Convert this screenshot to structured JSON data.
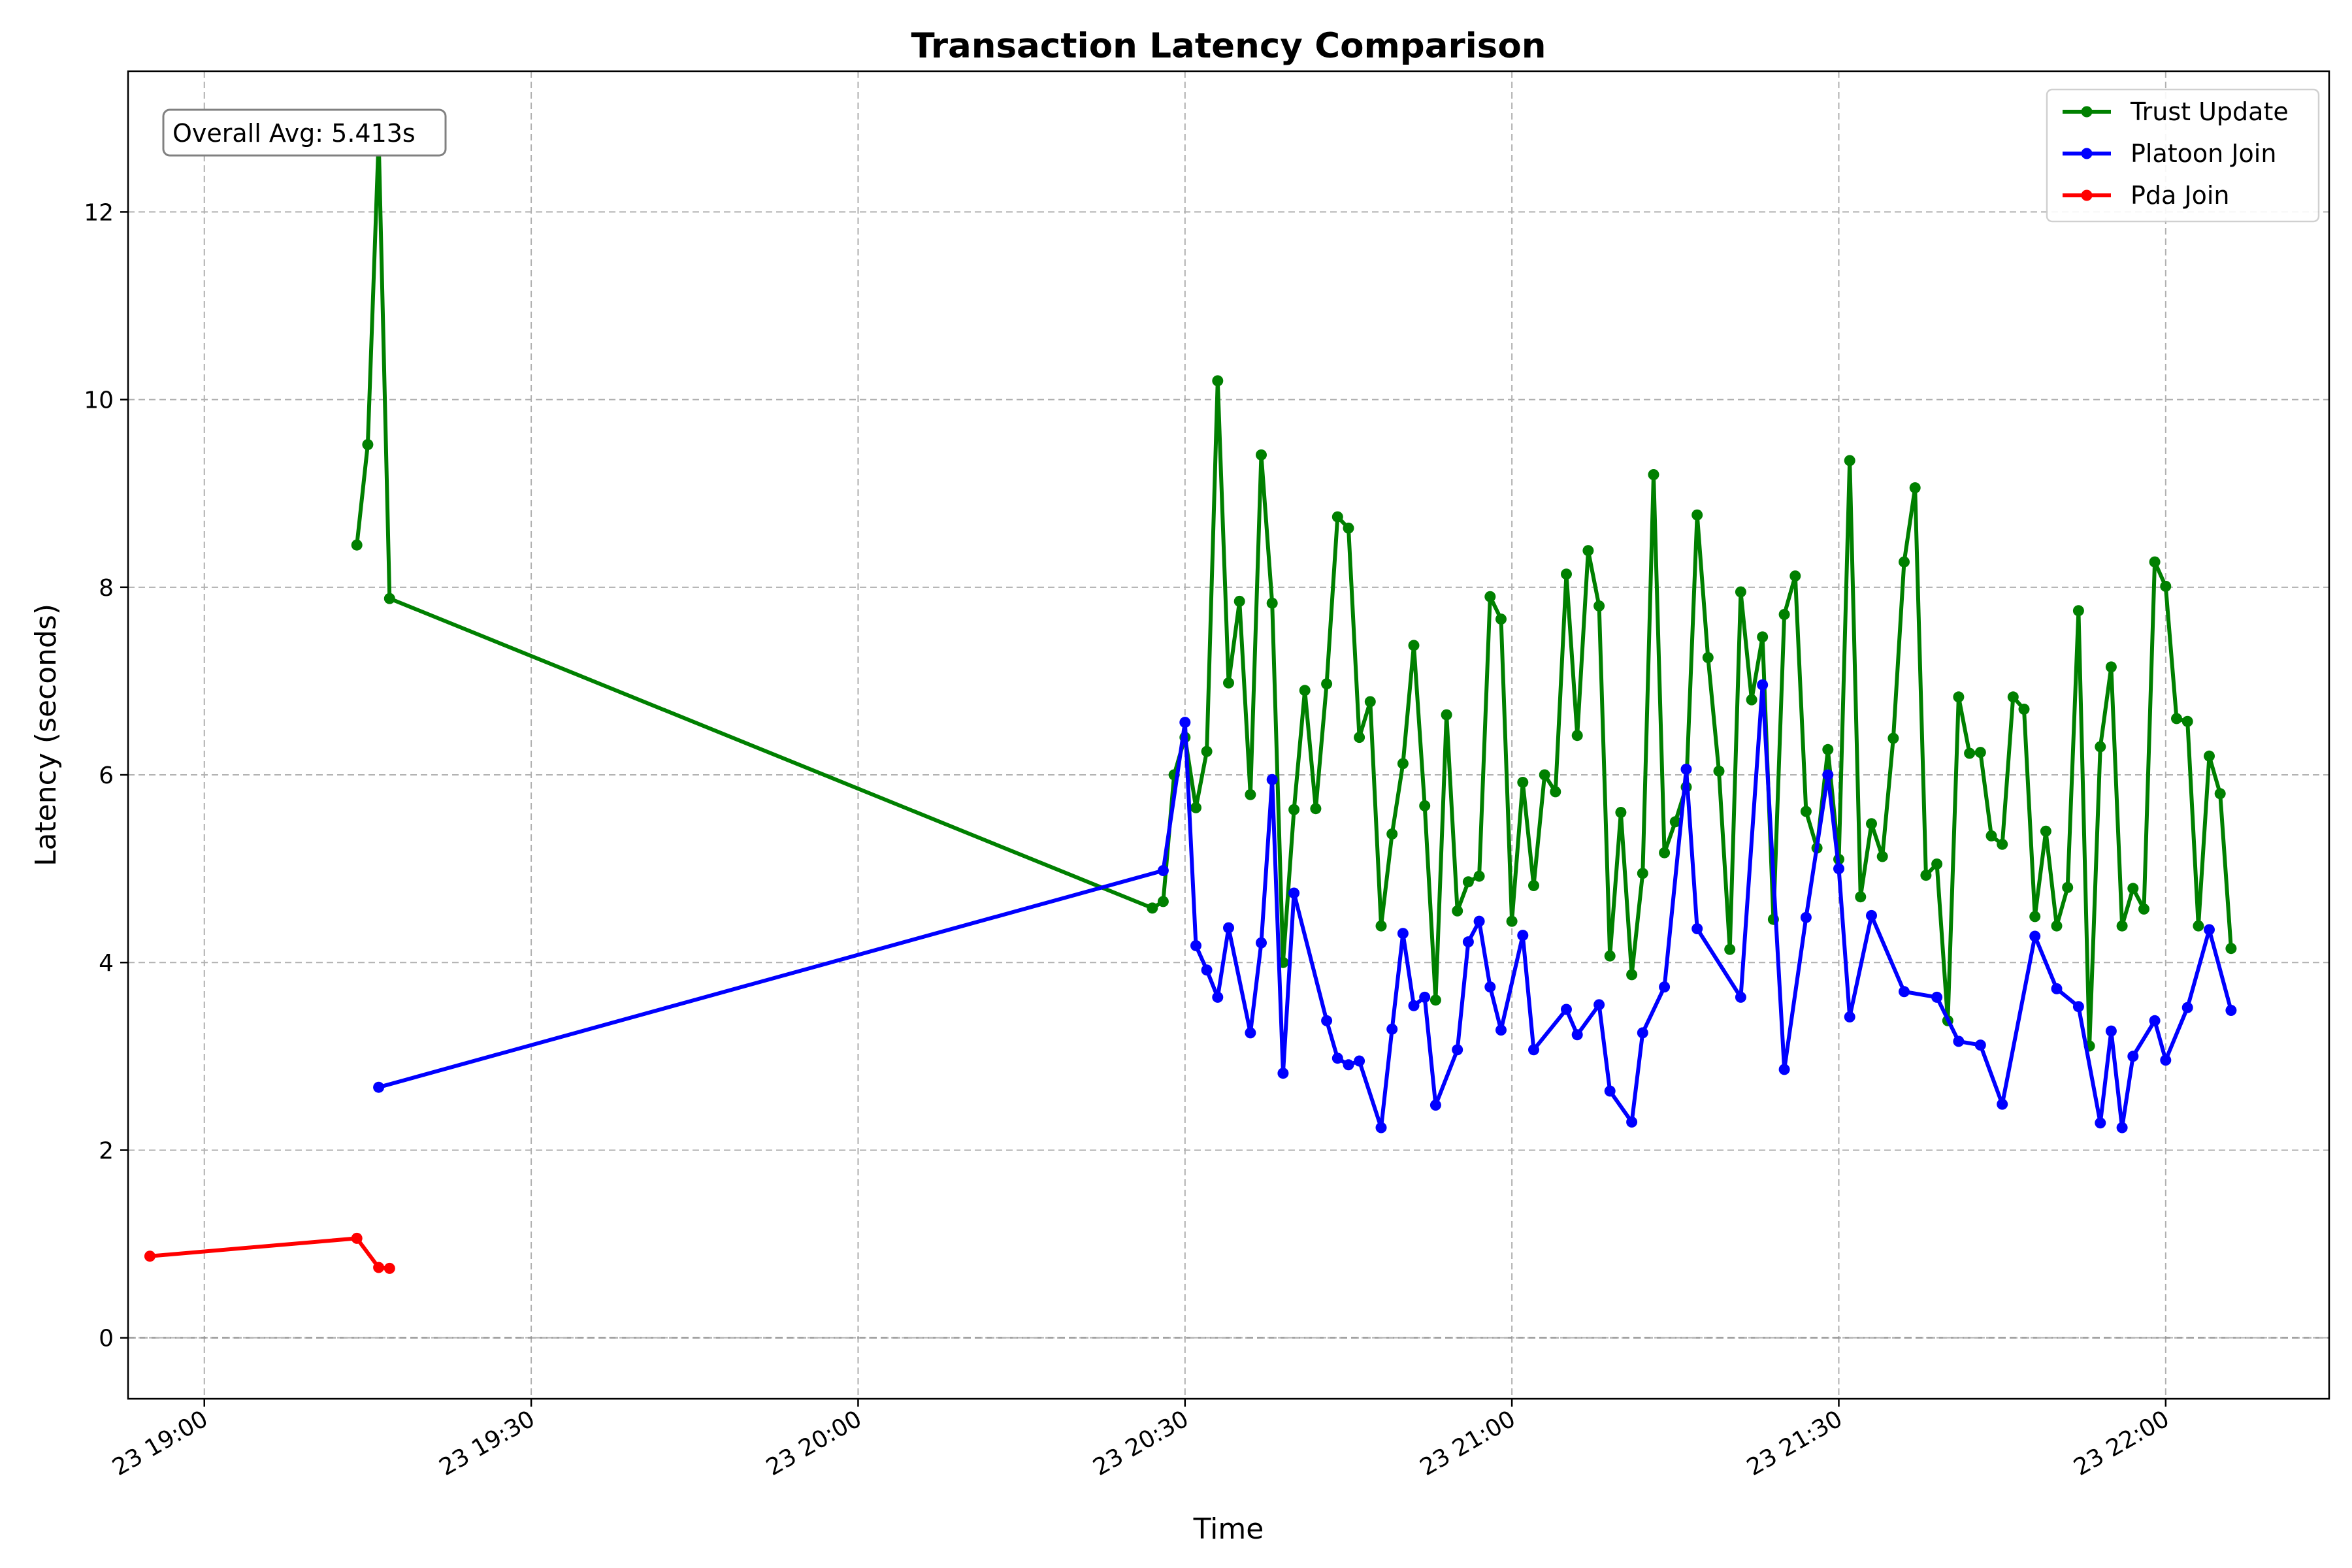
{
  "chart_data": {
    "type": "line",
    "title": "Transaction Latency Comparison",
    "xlabel": "Time",
    "ylabel": "Latency (seconds)",
    "x_is_time": true,
    "date_prefix": "23",
    "xlim": [
      "18:53",
      "22:15"
    ],
    "ylim": [
      -0.65,
      13.5
    ],
    "x_ticks": [
      "19:00",
      "19:30",
      "20:00",
      "20:30",
      "21:00",
      "21:30",
      "22:00"
    ],
    "x_tick_labels": [
      "23 19:00",
      "23 19:30",
      "23 20:00",
      "23 20:30",
      "23 21:00",
      "23 21:30",
      "23 22:00"
    ],
    "y_ticks": [
      0,
      2,
      4,
      6,
      8,
      10,
      12
    ],
    "y_tick_labels": [
      "0",
      "2",
      "4",
      "6",
      "8",
      "10",
      "12"
    ],
    "grid": true,
    "legend_position": "top-right",
    "annotation": "Overall Avg: 5.413s",
    "series": [
      {
        "name": "Trust Update",
        "color": "#008000",
        "x": [
          "19:14",
          "19:15",
          "19:16",
          "19:17",
          "20:27",
          "20:28",
          "20:29",
          "20:30",
          "20:31",
          "20:32",
          "20:33",
          "20:34",
          "20:35",
          "20:36",
          "20:37",
          "20:38",
          "20:39",
          "20:40",
          "20:41",
          "20:42",
          "20:43",
          "20:44",
          "20:45",
          "20:46",
          "20:47",
          "20:48",
          "20:49",
          "20:50",
          "20:51",
          "20:52",
          "20:53",
          "20:54",
          "20:55",
          "20:56",
          "20:57",
          "20:58",
          "20:59",
          "21:00",
          "21:01",
          "21:02",
          "21:03",
          "21:04",
          "21:05",
          "21:06",
          "21:07",
          "21:08",
          "21:09",
          "21:10",
          "21:11",
          "21:12",
          "21:13",
          "21:14",
          "21:15",
          "21:16",
          "21:17",
          "21:18",
          "21:19",
          "21:20",
          "21:21",
          "21:22",
          "21:23",
          "21:24",
          "21:25",
          "21:26",
          "21:27",
          "21:28",
          "21:29",
          "21:30",
          "21:31",
          "21:32",
          "21:33",
          "21:34",
          "21:35",
          "21:36",
          "21:37",
          "21:38",
          "21:39",
          "21:40",
          "21:41",
          "21:42",
          "21:43",
          "21:44",
          "21:45",
          "21:46",
          "21:47",
          "21:48",
          "21:49",
          "21:50",
          "21:51",
          "21:52",
          "21:53",
          "21:54",
          "21:55",
          "21:56",
          "21:57",
          "21:58",
          "21:59",
          "22:00",
          "22:01",
          "22:02",
          "22:03",
          "22:04",
          "22:05",
          "22:06"
        ],
        "y": [
          8.45,
          9.52,
          12.78,
          7.88,
          4.58,
          4.65,
          6.0,
          6.4,
          5.65,
          6.25,
          10.2,
          6.98,
          7.85,
          5.79,
          9.41,
          7.83,
          4.0,
          5.63,
          6.9,
          5.64,
          6.97,
          8.75,
          8.63,
          6.4,
          6.78,
          4.39,
          5.37,
          6.12,
          7.38,
          5.67,
          3.6,
          6.64,
          4.55,
          4.86,
          4.92,
          7.9,
          7.66,
          4.44,
          5.92,
          4.82,
          6.0,
          5.82,
          8.14,
          6.42,
          8.39,
          7.8,
          4.07,
          5.6,
          3.87,
          4.95,
          9.2,
          5.17,
          5.5,
          5.87,
          8.77,
          7.25,
          6.04,
          4.14,
          7.95,
          6.8,
          7.47,
          4.46,
          7.71,
          8.12,
          5.61,
          5.22,
          6.27,
          5.1,
          9.35,
          4.7,
          5.48,
          5.13,
          6.39,
          8.27,
          9.06,
          4.93,
          5.05,
          3.38,
          6.83,
          6.23,
          6.24,
          5.35,
          5.26,
          6.83,
          6.7,
          4.49,
          5.4,
          4.39,
          4.8,
          7.75,
          3.11,
          6.3,
          7.15,
          4.39,
          4.79,
          4.57,
          8.27,
          8.01,
          6.6,
          6.57,
          4.39,
          6.2,
          5.8,
          4.15
        ]
      },
      {
        "name": "Platoon Join",
        "color": "#0000ff",
        "x": [
          "19:16",
          "20:28",
          "20:30",
          "20:31",
          "20:32",
          "20:33",
          "20:34",
          "20:36",
          "20:37",
          "20:38",
          "20:39",
          "20:40",
          "20:43",
          "20:44",
          "20:45",
          "20:46",
          "20:48",
          "20:49",
          "20:50",
          "20:51",
          "20:52",
          "20:53",
          "20:55",
          "20:56",
          "20:57",
          "20:58",
          "20:59",
          "21:01",
          "21:02",
          "21:05",
          "21:06",
          "21:08",
          "21:09",
          "21:11",
          "21:12",
          "21:14",
          "21:16",
          "21:17",
          "21:21",
          "21:23",
          "21:25",
          "21:27",
          "21:29",
          "21:30",
          "21:31",
          "21:33",
          "21:36",
          "21:39",
          "21:41",
          "21:43",
          "21:45",
          "21:48",
          "21:50",
          "21:52",
          "21:54",
          "21:55",
          "21:56",
          "21:57",
          "21:59",
          "22:00",
          "22:02",
          "22:04",
          "22:06"
        ],
        "y": [
          2.67,
          4.98,
          6.56,
          4.18,
          3.92,
          3.63,
          4.37,
          3.25,
          4.21,
          5.95,
          2.82,
          4.74,
          3.38,
          2.98,
          2.91,
          2.95,
          2.24,
          3.29,
          4.31,
          3.54,
          3.63,
          2.48,
          3.07,
          4.22,
          4.44,
          3.74,
          3.28,
          4.29,
          3.07,
          3.5,
          3.23,
          3.55,
          2.63,
          2.3,
          3.25,
          3.74,
          6.06,
          4.36,
          3.63,
          6.96,
          2.86,
          4.48,
          6.0,
          5.0,
          3.42,
          4.5,
          3.69,
          3.63,
          3.16,
          3.12,
          2.49,
          4.28,
          3.72,
          3.53,
          2.29,
          3.27,
          2.24,
          3.0,
          3.38,
          2.96,
          3.52,
          4.35,
          3.49
        ]
      },
      {
        "name": "Pda Join",
        "color": "#ff0000",
        "x": [
          "18:55",
          "19:14",
          "19:16",
          "19:17"
        ],
        "y": [
          0.87,
          1.06,
          0.75,
          0.74
        ]
      }
    ]
  }
}
